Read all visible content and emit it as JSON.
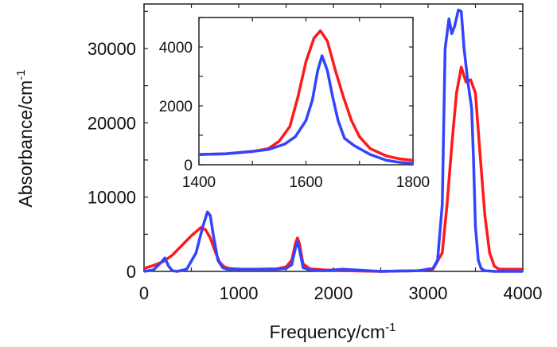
{
  "colors": {
    "red": "#ff1a1a",
    "blue": "#3344ff"
  },
  "chart_data": [
    {
      "type": "line",
      "title": "",
      "xlabel": "Frequency/cm",
      "xlabel_sup": "-1",
      "ylabel": "Absorbance/cm",
      "ylabel_sup": "-1",
      "xlim": [
        0,
        4000
      ],
      "ylim": [
        0,
        36000
      ],
      "xticks": [
        0,
        1000,
        2000,
        3000,
        4000
      ],
      "xtick_labels": [
        "0",
        "1000",
        "2000",
        "3000",
        "4000"
      ],
      "yticks": [
        0,
        10000,
        20000,
        30000
      ],
      "ytick_labels": [
        "0",
        "10000",
        "20000",
        "30000"
      ],
      "grid": false,
      "series": [
        {
          "color": "#ff1a1a",
          "x": [
            0,
            100,
            200,
            300,
            400,
            500,
            600,
            650,
            700,
            750,
            800,
            850,
            900,
            1000,
            1200,
            1400,
            1500,
            1560,
            1600,
            1620,
            1640,
            1680,
            1750,
            1900,
            2100,
            2500,
            2900,
            3050,
            3150,
            3200,
            3250,
            3300,
            3350,
            3400,
            3450,
            3500,
            3550,
            3600,
            3650,
            3700,
            3750,
            3850,
            4000
          ],
          "y": [
            400,
            800,
            1300,
            2200,
            3500,
            4800,
            5900,
            5600,
            4500,
            2700,
            1200,
            600,
            400,
            300,
            300,
            350,
            600,
            1500,
            3800,
            4500,
            3800,
            1000,
            350,
            200,
            100,
            0,
            100,
            300,
            2500,
            9000,
            17000,
            24000,
            27500,
            25500,
            25800,
            24000,
            15500,
            7500,
            2500,
            700,
            300,
            300,
            300
          ]
        },
        {
          "color": "#3344ff",
          "x": [
            0,
            100,
            180,
            220,
            260,
            300,
            350,
            450,
            550,
            620,
            670,
            700,
            730,
            780,
            830,
            880,
            1000,
            1200,
            1400,
            1500,
            1560,
            1600,
            1620,
            1640,
            1680,
            1750,
            1900,
            2100,
            2500,
            2900,
            3050,
            3100,
            3150,
            3180,
            3220,
            3250,
            3280,
            3320,
            3350,
            3380,
            3420,
            3460,
            3480,
            3500,
            3530,
            3560,
            3600,
            3700,
            4000
          ],
          "y": [
            0,
            200,
            1200,
            1800,
            700,
            100,
            0,
            300,
            2500,
            6000,
            8000,
            7500,
            5000,
            1500,
            500,
            300,
            300,
            300,
            300,
            400,
            900,
            3200,
            4000,
            3000,
            500,
            200,
            100,
            300,
            0,
            100,
            400,
            1500,
            9000,
            30000,
            34000,
            32000,
            33000,
            35200,
            35000,
            30000,
            25500,
            22000,
            15000,
            6000,
            1500,
            400,
            100,
            0,
            0
          ]
        }
      ]
    },
    {
      "type": "line",
      "title": "",
      "xlim": [
        1400,
        1800
      ],
      "ylim": [
        0,
        5000
      ],
      "xticks": [
        1400,
        1600,
        1800
      ],
      "xtick_labels": [
        "1400",
        "1600",
        "1800"
      ],
      "yticks": [
        0,
        2000,
        4000
      ],
      "ytick_labels": [
        "0",
        "2000",
        "4000"
      ],
      "grid": false,
      "series": [
        {
          "color": "#ff1a1a",
          "x": [
            1400,
            1450,
            1500,
            1530,
            1550,
            1570,
            1585,
            1600,
            1615,
            1627,
            1640,
            1655,
            1670,
            1685,
            1700,
            1720,
            1750,
            1775,
            1800
          ],
          "y": [
            350,
            370,
            450,
            550,
            800,
            1300,
            2300,
            3500,
            4300,
            4550,
            4200,
            3200,
            2300,
            1500,
            950,
            550,
            300,
            200,
            150
          ]
        },
        {
          "color": "#3344ff",
          "x": [
            1400,
            1450,
            1500,
            1530,
            1560,
            1580,
            1600,
            1612,
            1622,
            1630,
            1640,
            1650,
            1660,
            1672,
            1690,
            1720,
            1750,
            1775,
            1800
          ],
          "y": [
            350,
            370,
            450,
            520,
            700,
            950,
            1500,
            2200,
            3200,
            3700,
            3200,
            2300,
            1500,
            900,
            650,
            350,
            150,
            80,
            50
          ]
        }
      ]
    }
  ]
}
